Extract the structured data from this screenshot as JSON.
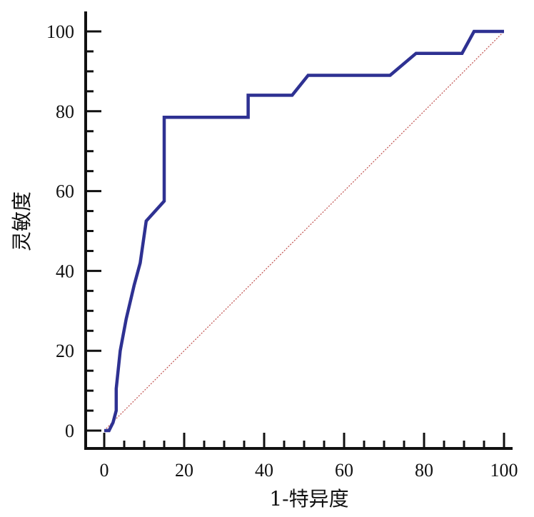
{
  "chart_data": {
    "type": "line",
    "title": "",
    "xlabel": "1-特异度",
    "ylabel": "灵敏度",
    "xlim": [
      0,
      100
    ],
    "ylim": [
      0,
      100
    ],
    "x_ticks": [
      0,
      20,
      40,
      60,
      80,
      100
    ],
    "y_ticks": [
      0,
      20,
      40,
      60,
      80,
      100
    ],
    "x_tick_labels": [
      "0",
      "20",
      "40",
      "60",
      "80",
      "100"
    ],
    "y_tick_labels": [
      "0",
      "20",
      "40",
      "60",
      "80",
      "100"
    ],
    "minor_tick_step": 5,
    "grid": false,
    "series": [
      {
        "color": "#2e3192",
        "style": "solid",
        "x": [
          0,
          1.2,
          2.2,
          3,
          3,
          4,
          5.5,
          7.5,
          9,
          10.5,
          15,
          15,
          36,
          36,
          47,
          51,
          71.5,
          78,
          89.5,
          92.5,
          100
        ],
        "y": [
          0,
          0,
          2,
          5,
          10.5,
          20,
          28,
          36.5,
          42,
          52.5,
          57.5,
          78.5,
          78.5,
          84,
          84,
          89,
          89,
          94.5,
          94.5,
          100,
          100
        ]
      },
      {
        "color": "#c0504d",
        "style": "dotted",
        "x": [
          0,
          100
        ],
        "y": [
          0,
          100
        ]
      }
    ]
  }
}
